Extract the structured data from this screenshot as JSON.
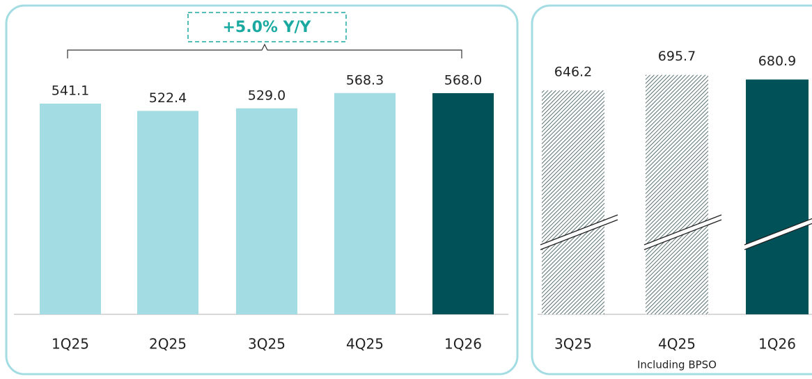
{
  "chart_data": [
    {
      "type": "bar",
      "categories": [
        "1Q25",
        "2Q25",
        "3Q25",
        "4Q25",
        "1Q26"
      ],
      "values": [
        541.1,
        522.4,
        529.0,
        568.3,
        568.0
      ],
      "value_labels": [
        "541.1",
        "522.4",
        "529.0",
        "568.3",
        "568.0"
      ],
      "colors": [
        "#a3dde3",
        "#a3dde3",
        "#a3dde3",
        "#a3dde3",
        "#005258"
      ],
      "annotation": "+5.0% Y/Y"
    },
    {
      "type": "bar",
      "categories": [
        "3Q25",
        "4Q25",
        "1Q26"
      ],
      "values": [
        646.2,
        695.7,
        680.9
      ],
      "value_labels": [
        "646.2",
        "695.7",
        "680.9"
      ],
      "colors": [
        "#2f4f4f",
        "#2f4f4f",
        "#005258"
      ],
      "hatched": [
        true,
        true,
        false
      ],
      "broken_axis": true,
      "annotation": "Including BPSO"
    }
  ]
}
